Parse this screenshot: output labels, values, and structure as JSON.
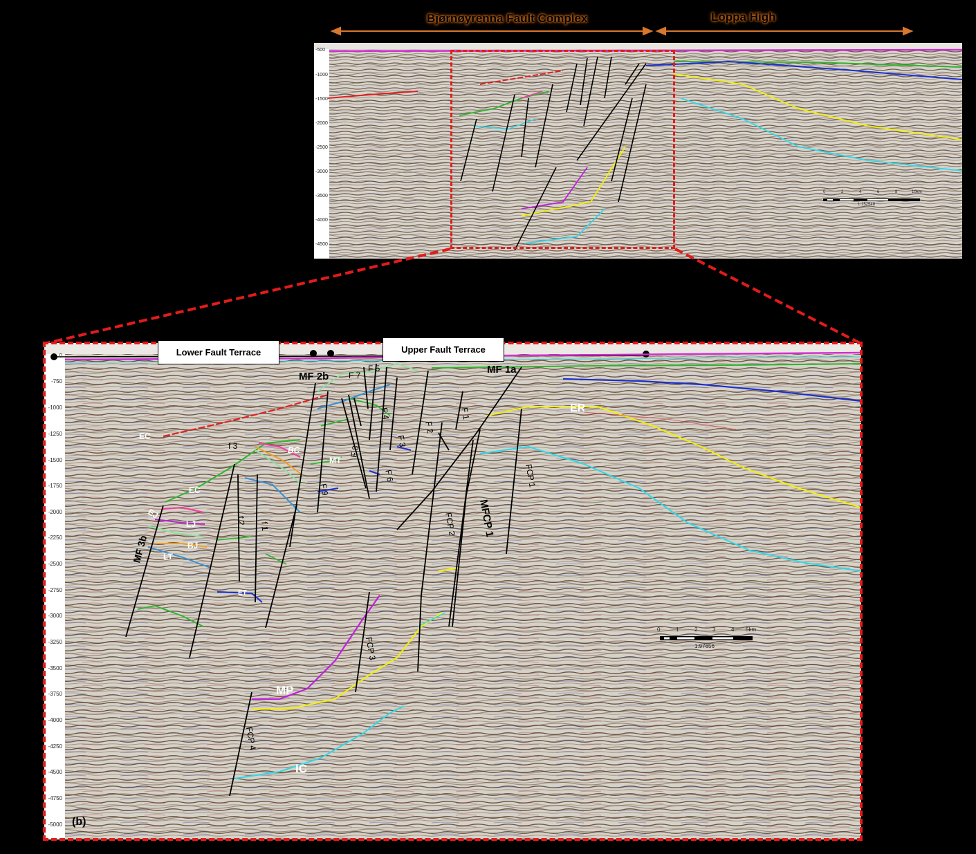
{
  "overview": {
    "region_labels": [
      "Bjørnøyrenna Fault Complex",
      "Loppa High"
    ],
    "depth_ticks": [
      "-500",
      "-1000",
      "-1500",
      "-2000",
      "-2500",
      "-3000",
      "-3500",
      "-4000",
      "-4500"
    ],
    "scale_bar": {
      "ticks": [
        "0",
        "2",
        "4",
        "6",
        "8",
        "10km"
      ],
      "ratio": "1:152548"
    }
  },
  "detail": {
    "panel_label": "(b)",
    "terraces": [
      "Lower Fault Terrace",
      "Upper Fault Terrace"
    ],
    "depth_ticks": [
      "0",
      "-750",
      "-1000",
      "-1250",
      "-1500",
      "-1750",
      "-2000",
      "-2250",
      "-2500",
      "-2750",
      "-3000",
      "-3250",
      "-3500",
      "-3750",
      "-4000",
      "-4250",
      "-4500",
      "-4750",
      "-5000"
    ],
    "fault_labels": [
      "MF 2b",
      "MF 1a",
      "F 7",
      "F 5",
      "F 4",
      "F 8",
      "F 3",
      "F 2",
      "F 1",
      "F 6",
      "F 9",
      "f 3",
      "f 2",
      "f 1",
      "MF 3b",
      "FCP 2",
      "FCP 1",
      "FCP 3",
      "FCP 4",
      "MFCP 1"
    ],
    "horizon_labels": [
      "EC",
      "BC",
      "MT",
      "EC",
      "EJ",
      "LJ",
      "BJ",
      "LT",
      "ET",
      "ER",
      "MP",
      "IC"
    ],
    "scale_bar": {
      "ticks": [
        "0",
        "1",
        "2",
        "3",
        "4",
        "5km"
      ],
      "ratio": "1:97656"
    }
  },
  "colors": {
    "frame": "#e31b1b",
    "arrow": "#d9772b",
    "horizon_red": "#e02020",
    "horizon_green": "#2fb52f",
    "horizon_blue": "#1a2fd0",
    "horizon_yellow": "#f5f000",
    "horizon_cyan": "#2fd8e8",
    "horizon_magenta": "#c020e0",
    "horizon_pink": "#f040a0",
    "horizon_orange": "#f0a020",
    "seafloor": "#d030d0"
  }
}
